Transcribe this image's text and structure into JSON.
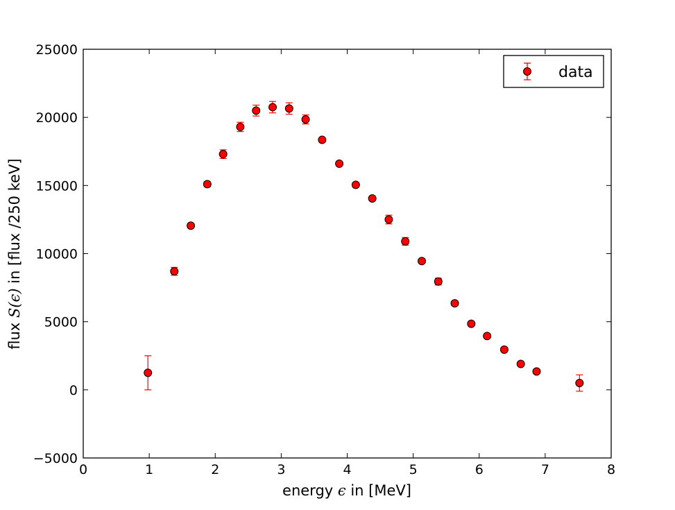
{
  "chart_data": {
    "type": "scatter",
    "title": "",
    "xlabel": {
      "prefix": "energy ",
      "symbol": "ϵ",
      "suffix": " in [MeV]"
    },
    "ylabel": {
      "prefix": "flux ",
      "symbol": "S(ϵ)",
      "suffix": " in [flux /250 keV]"
    },
    "xlim": [
      0,
      8
    ],
    "ylim": [
      -5000,
      25000
    ],
    "xticks": [
      0,
      1,
      2,
      3,
      4,
      5,
      6,
      7,
      8
    ],
    "yticks": [
      -5000,
      0,
      5000,
      10000,
      15000,
      20000,
      25000
    ],
    "xtick_labels": [
      "0",
      "1",
      "2",
      "3",
      "4",
      "5",
      "6",
      "7",
      "8"
    ],
    "ytick_labels": [
      "−5000",
      "0",
      "5000",
      "10000",
      "15000",
      "20000",
      "25000"
    ],
    "grid": false,
    "legend_position": "top-right",
    "marker_color": "#ff0000",
    "marker_edge_color": "#000000",
    "errorbar_color": "#ff0000",
    "series": [
      {
        "name": "data",
        "x": [
          0.98,
          1.38,
          1.63,
          1.88,
          2.12,
          2.38,
          2.62,
          2.87,
          3.12,
          3.37,
          3.62,
          3.88,
          4.13,
          4.38,
          4.63,
          4.88,
          5.13,
          5.38,
          5.63,
          5.88,
          6.12,
          6.38,
          6.63,
          6.87,
          7.52
        ],
        "y": [
          1250,
          8700,
          12050,
          15100,
          17300,
          19300,
          20500,
          20750,
          20650,
          19850,
          18350,
          16600,
          15050,
          14050,
          12500,
          10900,
          9450,
          7950,
          6350,
          4850,
          3950,
          2950,
          1900,
          1350,
          500
        ],
        "yerr": [
          1250,
          290,
          150,
          180,
          320,
          340,
          400,
          420,
          420,
          330,
          150,
          120,
          120,
          120,
          320,
          280,
          150,
          250,
          170,
          150,
          150,
          150,
          110,
          110,
          600
        ]
      }
    ]
  }
}
